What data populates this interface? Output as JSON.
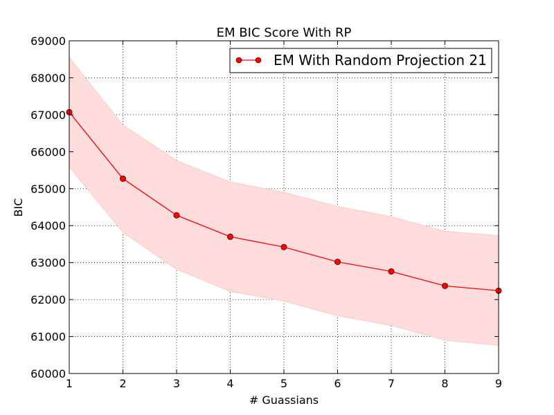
{
  "chart_data": {
    "type": "line",
    "title": "EM BIC Score With RP",
    "xlabel": "# Guassians",
    "ylabel": "BIC",
    "x": [
      1,
      2,
      3,
      4,
      5,
      6,
      7,
      8,
      9
    ],
    "xlim": [
      1,
      9
    ],
    "ylim": [
      60000,
      69000
    ],
    "xticks": [
      "1",
      "2",
      "3",
      "4",
      "5",
      "6",
      "7",
      "8",
      "9"
    ],
    "yticks": [
      "60000",
      "61000",
      "62000",
      "63000",
      "64000",
      "65000",
      "66000",
      "67000",
      "68000",
      "69000"
    ],
    "grid": true,
    "legend_position": "top-right",
    "series": [
      {
        "name": "EM With Random Projection 21",
        "color": "#ff0000",
        "band_color": "#ffdddd",
        "values": [
          67070,
          65270,
          64280,
          63700,
          63420,
          63020,
          62760,
          62370,
          62240
        ],
        "band_upper": [
          68550,
          66720,
          65760,
          65180,
          64900,
          64520,
          64240,
          63850,
          63730
        ],
        "band_lower": [
          65590,
          63820,
          62820,
          62220,
          61960,
          61560,
          61300,
          60900,
          60760
        ]
      }
    ]
  }
}
